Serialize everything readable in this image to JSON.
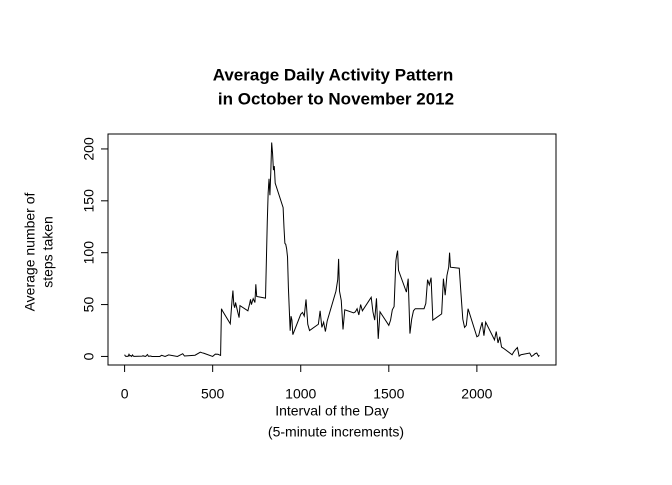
{
  "chart_data": {
    "type": "line",
    "title": [
      "Average Daily Activity Pattern",
      "in October to November 2012"
    ],
    "x_label": [
      "Interval of the Day",
      "(5-minute increments)"
    ],
    "y_label": [
      "Average number of",
      "steps taken"
    ],
    "color": "#000000",
    "x": [
      0,
      5,
      10,
      15,
      20,
      25,
      30,
      35,
      40,
      45,
      50,
      55,
      100,
      105,
      110,
      115,
      120,
      125,
      130,
      135,
      140,
      145,
      150,
      155,
      200,
      210,
      230,
      250,
      300,
      330,
      340,
      400,
      430,
      440,
      450,
      500,
      515,
      530,
      545,
      550,
      555,
      600,
      610,
      615,
      620,
      625,
      630,
      640,
      650,
      655,
      700,
      710,
      715,
      720,
      730,
      740,
      745,
      750,
      800,
      810,
      815,
      820,
      825,
      830,
      835,
      840,
      845,
      850,
      855,
      900,
      905,
      910,
      915,
      920,
      925,
      930,
      935,
      940,
      945,
      950,
      955,
      1000,
      1010,
      1020,
      1030,
      1040,
      1050,
      1100,
      1110,
      1120,
      1130,
      1140,
      1150,
      1200,
      1210,
      1215,
      1220,
      1230,
      1240,
      1250,
      1300,
      1310,
      1320,
      1330,
      1340,
      1350,
      1400,
      1410,
      1420,
      1430,
      1440,
      1450,
      1500,
      1510,
      1520,
      1530,
      1540,
      1545,
      1550,
      1555,
      1600,
      1610,
      1620,
      1630,
      1640,
      1650,
      1700,
      1710,
      1720,
      1730,
      1740,
      1750,
      1800,
      1810,
      1820,
      1830,
      1840,
      1845,
      1850,
      1900,
      1910,
      1920,
      1930,
      1940,
      1950,
      2000,
      2010,
      2020,
      2030,
      2040,
      2050,
      2100,
      2110,
      2120,
      2130,
      2140,
      2150,
      2200,
      2210,
      2220,
      2230,
      2240,
      2250,
      2300,
      2310,
      2320,
      2330,
      2340,
      2350,
      2355
    ],
    "values": [
      1.7,
      0.3,
      0.1,
      0.2,
      0.1,
      2.1,
      0.5,
      0.9,
      0,
      1.5,
      0.3,
      0.1,
      0.3,
      0.7,
      0.2,
      0.3,
      0,
      1.1,
      1.8,
      0.2,
      0.2,
      0.4,
      0.3,
      0,
      0,
      1.1,
      0,
      1.5,
      0,
      2.6,
      0.4,
      1.2,
      4.1,
      3.5,
      3.1,
      0,
      2.2,
      2.1,
      1,
      46,
      44.2,
      31.5,
      54,
      63.5,
      50,
      47,
      52,
      44.5,
      37.4,
      49,
      44,
      50.9,
      55,
      49.9,
      55.7,
      52,
      69.5,
      57.8,
      56.2,
      129.4,
      157.5,
      171.2,
      155.4,
      177.3,
      206.2,
      195.9,
      179.6,
      183.4,
      167,
      143.5,
      124,
      109,
      108,
      103.7,
      95.9,
      66.2,
      45.2,
      24.8,
      38.8,
      35,
      21,
      40.6,
      42.4,
      38.9,
      55,
      31,
      25,
      31,
      44,
      28,
      33,
      24,
      34,
      63,
      74,
      94,
      63,
      54,
      26,
      45,
      42,
      43,
      46,
      40,
      50,
      44,
      57,
      43,
      35,
      56,
      17,
      43,
      30,
      35,
      45,
      48,
      92,
      98,
      102,
      83,
      62,
      75,
      22,
      36,
      44,
      46,
      46,
      51,
      74,
      69,
      76,
      35,
      41,
      75,
      59,
      78,
      86,
      100,
      86,
      85,
      60,
      36,
      28,
      30,
      46,
      19,
      20,
      27,
      33,
      20,
      33,
      16,
      24,
      13,
      19,
      9,
      8,
      1.6,
      4.6,
      6.8,
      8.6,
      0.3,
      1.6,
      3.3,
      0,
      1,
      2.6,
      3.3,
      0.2,
      1.1
    ],
    "xlim": [
      -94.2,
      2449.2
    ],
    "xticks": [
      0,
      500,
      1000,
      1500,
      2000
    ],
    "ylim": [
      -8.25,
      214.4
    ],
    "yticks": [
      0,
      50,
      100,
      150,
      200
    ]
  }
}
